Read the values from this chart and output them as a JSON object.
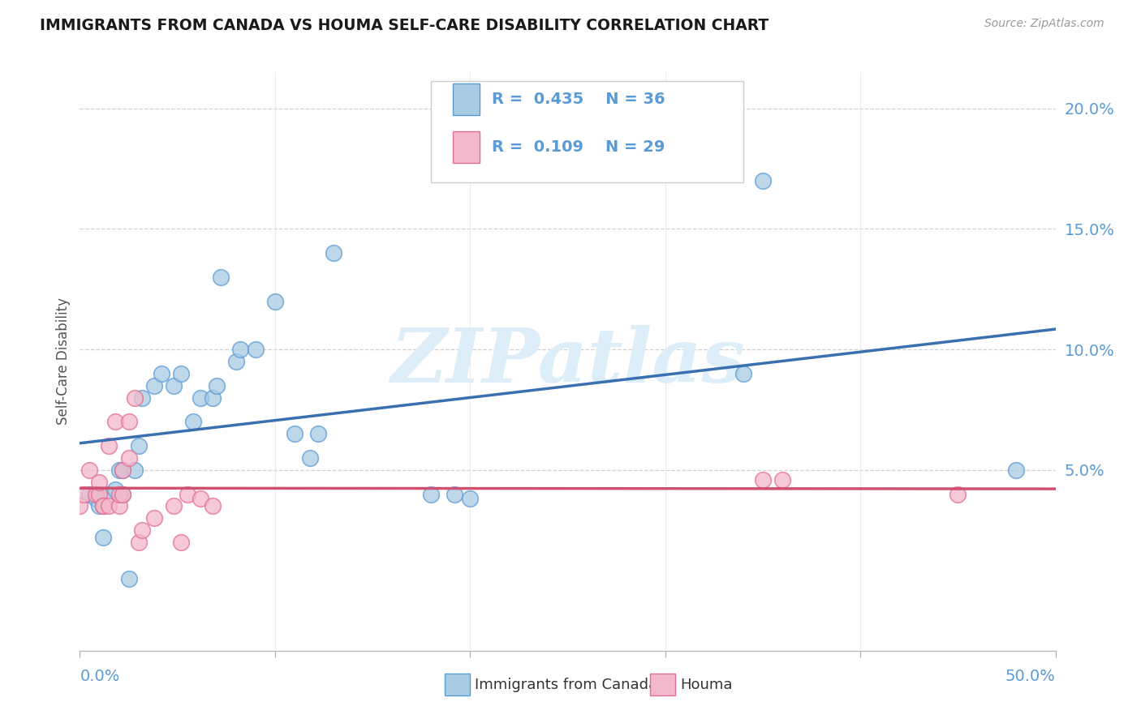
{
  "title": "IMMIGRANTS FROM CANADA VS HOUMA SELF-CARE DISABILITY CORRELATION CHART",
  "source": "Source: ZipAtlas.com",
  "ylabel": "Self-Care Disability",
  "legend_label1": "Immigrants from Canada",
  "legend_label2": "Houma",
  "r1": 0.435,
  "n1": 36,
  "r2": 0.109,
  "n2": 29,
  "xlim": [
    0.0,
    0.5
  ],
  "ylim": [
    -0.025,
    0.215
  ],
  "yticks": [
    0.05,
    0.1,
    0.15,
    0.2
  ],
  "ytick_labels": [
    "5.0%",
    "10.0%",
    "15.0%",
    "20.0%"
  ],
  "xtick_labels": [
    "0.0%",
    "",
    "",
    "",
    "",
    "50.0%"
  ],
  "blue_fill": "#a8cce4",
  "blue_edge": "#5b9bd5",
  "pink_fill": "#f4b8cc",
  "pink_edge": "#e07090",
  "blue_line_color": "#3a6fb0",
  "pink_line_color": "#d05070",
  "tick_color": "#5b9bd5",
  "watermark_text": "ZIPatlas",
  "watermark_color": "#ddeef8",
  "grid_color": "#d0d0d0",
  "blue_x": [
    0.005,
    0.008,
    0.01,
    0.012,
    0.015,
    0.018,
    0.02,
    0.022,
    0.022,
    0.025,
    0.028,
    0.03,
    0.032,
    0.038,
    0.042,
    0.048,
    0.052,
    0.058,
    0.062,
    0.068,
    0.07,
    0.072,
    0.08,
    0.082,
    0.09,
    0.1,
    0.11,
    0.118,
    0.122,
    0.13,
    0.18,
    0.192,
    0.2,
    0.34,
    0.35,
    0.48
  ],
  "blue_y": [
    0.04,
    0.038,
    0.035,
    0.022,
    0.04,
    0.042,
    0.05,
    0.05,
    0.04,
    0.005,
    0.05,
    0.06,
    0.08,
    0.085,
    0.09,
    0.085,
    0.09,
    0.07,
    0.08,
    0.08,
    0.085,
    0.13,
    0.095,
    0.1,
    0.1,
    0.12,
    0.065,
    0.055,
    0.065,
    0.14,
    0.04,
    0.04,
    0.038,
    0.09,
    0.17,
    0.05
  ],
  "pink_x": [
    0.0,
    0.002,
    0.005,
    0.008,
    0.01,
    0.01,
    0.012,
    0.012,
    0.015,
    0.015,
    0.018,
    0.02,
    0.02,
    0.022,
    0.022,
    0.025,
    0.025,
    0.028,
    0.03,
    0.032,
    0.038,
    0.048,
    0.052,
    0.055,
    0.062,
    0.068,
    0.35,
    0.36,
    0.45
  ],
  "pink_y": [
    0.035,
    0.04,
    0.05,
    0.04,
    0.04,
    0.045,
    0.035,
    0.035,
    0.035,
    0.06,
    0.07,
    0.035,
    0.04,
    0.04,
    0.05,
    0.055,
    0.07,
    0.08,
    0.02,
    0.025,
    0.03,
    0.035,
    0.02,
    0.04,
    0.038,
    0.035,
    0.046,
    0.046,
    0.04
  ]
}
